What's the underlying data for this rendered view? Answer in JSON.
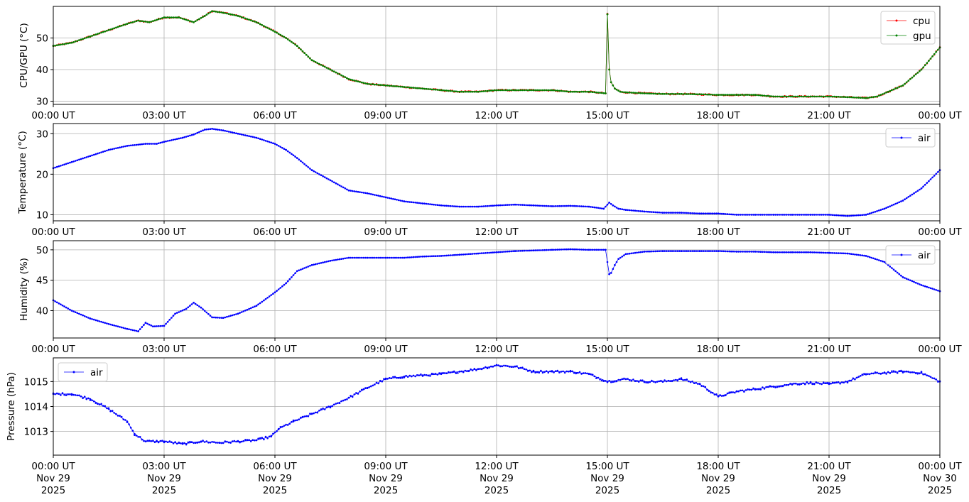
{
  "figure": {
    "x_tick_labels_short": [
      "00:00 UT",
      "03:00 UT",
      "06:00 UT",
      "09:00 UT",
      "12:00 UT",
      "15:00 UT",
      "18:00 UT",
      "21:00 UT",
      "00:00 UT"
    ],
    "x_tick_labels_full": [
      [
        "00:00 UT",
        "Nov 29",
        "2025"
      ],
      [
        "03:00 UT",
        "Nov 29",
        "2025"
      ],
      [
        "06:00 UT",
        "Nov 29",
        "2025"
      ],
      [
        "09:00 UT",
        "Nov 29",
        "2025"
      ],
      [
        "12:00 UT",
        "Nov 29",
        "2025"
      ],
      [
        "15:00 UT",
        "Nov 29",
        "2025"
      ],
      [
        "18:00 UT",
        "Nov 29",
        "2025"
      ],
      [
        "21:00 UT",
        "Nov 29",
        "2025"
      ],
      [
        "00:00 UT",
        "Nov 30",
        "2025"
      ]
    ]
  },
  "chart_data": [
    {
      "type": "line",
      "ylabel": "CPU/GPU (°C)",
      "xlim": [
        "2025-11-29 00:00 UT",
        "2025-11-30 00:00 UT"
      ],
      "ylim": [
        29,
        60
      ],
      "yticks": [
        30,
        40,
        50
      ],
      "grid": true,
      "legend": "top-right",
      "x_hours": [
        0,
        0.5,
        1,
        1.5,
        2,
        2.3,
        2.6,
        3,
        3.4,
        3.8,
        4.1,
        4.3,
        4.6,
        5,
        5.5,
        6,
        6.3,
        6.6,
        7,
        7.5,
        8,
        8.5,
        9,
        9.5,
        10,
        10.5,
        11,
        11.5,
        12,
        12.5,
        13,
        13.5,
        14,
        14.5,
        14.95,
        15.0,
        15.05,
        15.1,
        15.2,
        15.35,
        15.5,
        16,
        16.5,
        17,
        17.5,
        18,
        18.5,
        19,
        19.5,
        20,
        20.5,
        21,
        21.5,
        22,
        22.3,
        22.6,
        23,
        23.5,
        24
      ],
      "series": [
        {
          "name": "cpu",
          "color": "#ff0000",
          "values": [
            47.5,
            48.5,
            50.5,
            52.5,
            54.5,
            55.5,
            55,
            56.5,
            56.5,
            55,
            57,
            58.5,
            58,
            57,
            55,
            52,
            50,
            47.5,
            43,
            40,
            37,
            35.5,
            35,
            34.5,
            34,
            33.5,
            33,
            33,
            33.5,
            33.5,
            33.5,
            33.5,
            33,
            33,
            32.5,
            57.5,
            40,
            36,
            34,
            33,
            32.8,
            32.5,
            32.3,
            32.3,
            32.2,
            32,
            32,
            32,
            31.5,
            31.5,
            31.5,
            31.5,
            31.3,
            31,
            31.5,
            33,
            35,
            40,
            47
          ]
        },
        {
          "name": "gpu",
          "color": "#008000",
          "values": [
            47.5,
            48.5,
            50.5,
            52.5,
            54.5,
            55.5,
            55,
            56.5,
            56.5,
            55,
            57,
            58.5,
            58,
            57,
            55,
            52,
            50,
            47.5,
            43,
            40,
            37,
            35.5,
            35,
            34.5,
            34,
            33.5,
            33,
            33,
            33.5,
            33.5,
            33.5,
            33.5,
            33,
            33,
            32.5,
            57.5,
            40,
            36,
            34,
            33,
            32.8,
            32.5,
            32.3,
            32.3,
            32.2,
            32,
            32,
            32,
            31.5,
            31.5,
            31.5,
            31.5,
            31.3,
            31,
            31.5,
            33,
            35,
            40,
            47
          ]
        }
      ]
    },
    {
      "type": "line",
      "ylabel": "Temperature (°C)",
      "xlim": [
        "2025-11-29 00:00 UT",
        "2025-11-30 00:00 UT"
      ],
      "ylim": [
        8.5,
        32.5
      ],
      "yticks": [
        10,
        20,
        30
      ],
      "grid": true,
      "legend": "top-right",
      "x_hours": [
        0,
        0.5,
        1,
        1.5,
        2,
        2.5,
        2.8,
        3,
        3.5,
        3.8,
        4.1,
        4.3,
        4.6,
        5,
        5.5,
        6,
        6.3,
        6.6,
        7,
        7.5,
        8,
        8.5,
        9,
        9.5,
        10,
        10.5,
        11,
        11.5,
        12,
        12.5,
        13,
        13.5,
        14,
        14.5,
        14.9,
        15.05,
        15.15,
        15.3,
        15.5,
        16,
        16.5,
        17,
        17.5,
        18,
        18.5,
        19,
        19.5,
        20,
        20.5,
        21,
        21.5,
        22,
        22.5,
        23,
        23.5,
        24
      ],
      "series": [
        {
          "name": "air",
          "color": "#0000ff",
          "values": [
            21.5,
            23,
            24.5,
            26,
            27,
            27.5,
            27.5,
            28,
            29,
            29.8,
            31,
            31.2,
            30.8,
            30,
            29,
            27.5,
            26,
            24,
            21,
            18.5,
            16,
            15.3,
            14.3,
            13.3,
            12.8,
            12.3,
            12,
            12,
            12.3,
            12.5,
            12.3,
            12.1,
            12.2,
            12,
            11.5,
            13,
            12.3,
            11.5,
            11.2,
            10.8,
            10.5,
            10.5,
            10.3,
            10.3,
            10,
            10,
            10,
            10,
            10,
            10,
            9.7,
            10,
            11.5,
            13.5,
            16.5,
            21
          ]
        }
      ]
    },
    {
      "type": "scatter",
      "ylabel": "Humidity (%)",
      "xlim": [
        "2025-11-29 00:00 UT",
        "2025-11-30 00:00 UT"
      ],
      "ylim": [
        35.5,
        51.5
      ],
      "yticks": [
        40,
        45,
        50
      ],
      "grid": true,
      "legend": "top-right",
      "x_hours": [
        0,
        0.5,
        1,
        1.5,
        2,
        2.3,
        2.5,
        2.7,
        3,
        3.3,
        3.6,
        3.8,
        4,
        4.3,
        4.6,
        5,
        5.5,
        6,
        6.3,
        6.6,
        7,
        7.5,
        8,
        8.5,
        9,
        9.5,
        10,
        10.5,
        11,
        11.5,
        12,
        12.5,
        13,
        13.5,
        14,
        14.5,
        14.95,
        15.05,
        15.1,
        15.2,
        15.3,
        15.5,
        16,
        16.5,
        17,
        17.5,
        18,
        18.5,
        19,
        19.5,
        20,
        20.5,
        21,
        21.5,
        22,
        22.5,
        23,
        23.5,
        24
      ],
      "series": [
        {
          "name": "air",
          "color": "#0000ff",
          "values": [
            41.7,
            40,
            38.7,
            37.8,
            37,
            36.6,
            38,
            37.4,
            37.5,
            39.5,
            40.3,
            41.3,
            40.5,
            38.9,
            38.8,
            39.5,
            40.8,
            43,
            44.5,
            46.5,
            47.5,
            48.2,
            48.7,
            48.7,
            48.7,
            48.7,
            48.9,
            49,
            49.2,
            49.4,
            49.6,
            49.8,
            49.9,
            50,
            50.1,
            50,
            50,
            46,
            46.2,
            47.5,
            48.5,
            49.3,
            49.7,
            49.8,
            49.8,
            49.8,
            49.8,
            49.7,
            49.7,
            49.6,
            49.6,
            49.6,
            49.5,
            49.4,
            49,
            48,
            45.5,
            44.2,
            43.2
          ]
        }
      ]
    },
    {
      "type": "scatter",
      "ylabel": "Pressure (hPa)",
      "xlim": [
        "2025-11-29 00:00 UT",
        "2025-11-30 00:00 UT"
      ],
      "ylim": [
        1012.05,
        1015.95
      ],
      "yticks": [
        1013,
        1014,
        1015
      ],
      "grid": true,
      "legend": "top-left",
      "x_hours": [
        0,
        0.5,
        1,
        1.5,
        2,
        2.2,
        2.5,
        2.8,
        3,
        3.5,
        4,
        4.5,
        5,
        5.5,
        5.9,
        6.1,
        6.5,
        7,
        7.5,
        8,
        8.5,
        9,
        9.5,
        10,
        10.5,
        11,
        11.5,
        12,
        12.5,
        13,
        13.5,
        14,
        14.5,
        15,
        15.5,
        16,
        16.5,
        17,
        17.5,
        18,
        18.5,
        19,
        19.5,
        20,
        20.5,
        21,
        21.5,
        22,
        22.5,
        23,
        23.5,
        24
      ],
      "series": [
        {
          "name": "air",
          "color": "#0000ff",
          "values": [
            1014.5,
            1014.5,
            1014.3,
            1013.9,
            1013.4,
            1012.9,
            1012.6,
            1012.6,
            1012.6,
            1012.5,
            1012.6,
            1012.55,
            1012.6,
            1012.65,
            1012.8,
            1013.1,
            1013.4,
            1013.7,
            1014,
            1014.35,
            1014.75,
            1015.1,
            1015.2,
            1015.25,
            1015.3,
            1015.4,
            1015.5,
            1015.65,
            1015.6,
            1015.4,
            1015.4,
            1015.4,
            1015.3,
            1015.0,
            1015.1,
            1015.0,
            1015.0,
            1015.1,
            1014.9,
            1014.4,
            1014.6,
            1014.7,
            1014.8,
            1014.9,
            1014.95,
            1014.9,
            1015.0,
            1015.3,
            1015.35,
            1015.4,
            1015.35,
            1015.0
          ]
        }
      ]
    }
  ]
}
